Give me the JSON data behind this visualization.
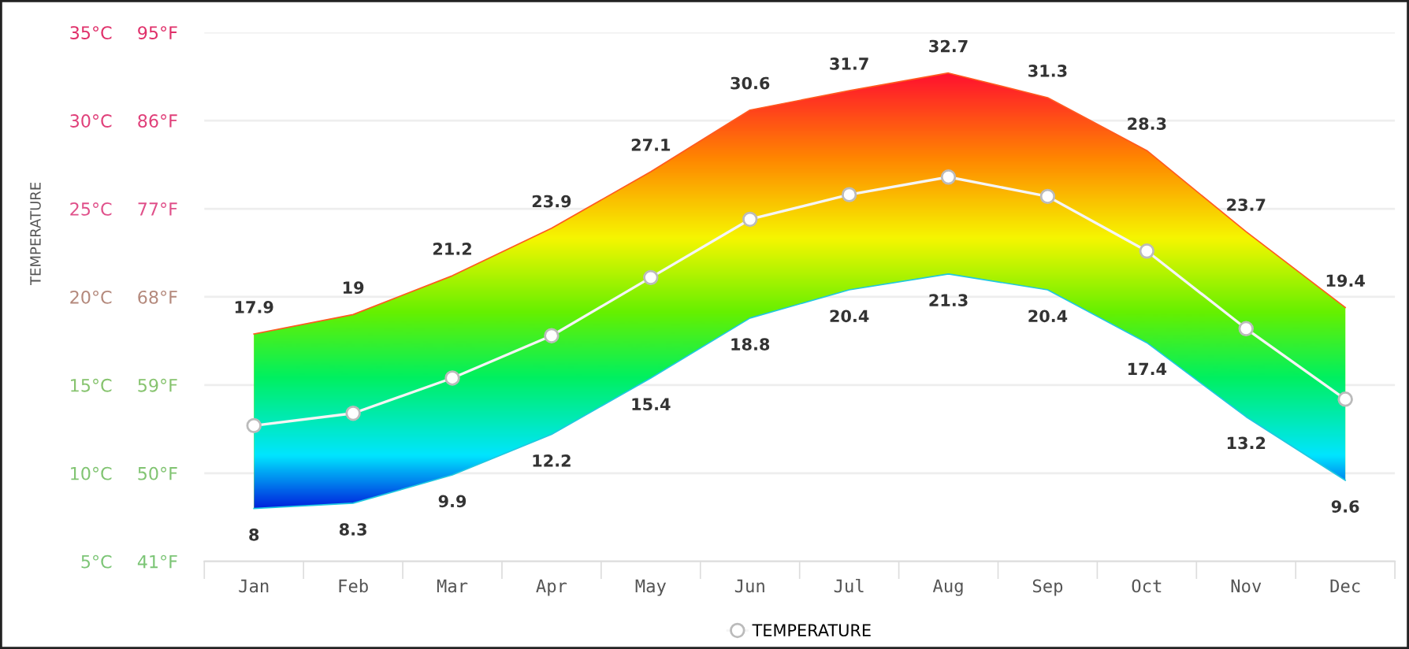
{
  "chart_data": {
    "type": "line",
    "ylabel": "TEMPERATURE",
    "categories": [
      "Jan",
      "Feb",
      "Mar",
      "Apr",
      "May",
      "Jun",
      "Jul",
      "Aug",
      "Sep",
      "Oct",
      "Nov",
      "Dec"
    ],
    "series": [
      {
        "name": "TEMPERATURE",
        "color": "#f5f5f5",
        "values": [
          12.7,
          13.4,
          15.4,
          17.8,
          21.1,
          24.4,
          25.8,
          26.8,
          25.7,
          22.6,
          18.2,
          14.2
        ]
      },
      {
        "color": "#ff5a20",
        "marker": "none",
        "values": [
          17.9,
          19,
          21.2,
          23.9,
          27.1,
          30.6,
          31.7,
          32.7,
          31.3,
          28.3,
          23.7,
          19.4
        ],
        "value_labels": [
          "17.9",
          "19",
          "21.2",
          "23.9",
          "27.1",
          "30.6",
          "31.7",
          "32.7",
          "31.3",
          "28.3",
          "23.7",
          "19.4"
        ]
      },
      {
        "color": "#20c8e0",
        "marker": "none",
        "values": [
          8,
          8.3,
          9.9,
          12.2,
          15.4,
          18.8,
          20.4,
          21.3,
          20.4,
          17.4,
          13.2,
          9.6
        ],
        "value_labels": [
          "8",
          "8.3",
          "9.9",
          "12.2",
          "15.4",
          "18.8",
          "20.4",
          "21.3",
          "20.4",
          "17.4",
          "13.2",
          "9.6"
        ]
      }
    ],
    "ylim": [
      5,
      35
    ],
    "yticks": [
      {
        "value": 5,
        "label": "5°C"
      },
      {
        "value": 10,
        "label": "10°C"
      },
      {
        "value": 15,
        "label": "15°C"
      },
      {
        "value": 20,
        "label": "20°C"
      },
      {
        "value": 25,
        "label": "25°C"
      },
      {
        "value": 30,
        "label": "30°C"
      },
      {
        "value": 35,
        "label": "35°C"
      }
    ],
    "y2lim": [
      41,
      95
    ],
    "y2ticks": [
      {
        "value": 41,
        "label": "41°F"
      },
      {
        "value": 50,
        "label": "50°F"
      },
      {
        "value": 59,
        "label": "59°F"
      },
      {
        "value": 68,
        "label": "68°F"
      },
      {
        "value": 77,
        "label": "77°F"
      },
      {
        "value": 86,
        "label": "86°F"
      },
      {
        "value": 95,
        "label": "95°F"
      }
    ],
    "grid": "y",
    "legend": "bottom",
    "marker": "circle",
    "line_style": "solid"
  }
}
